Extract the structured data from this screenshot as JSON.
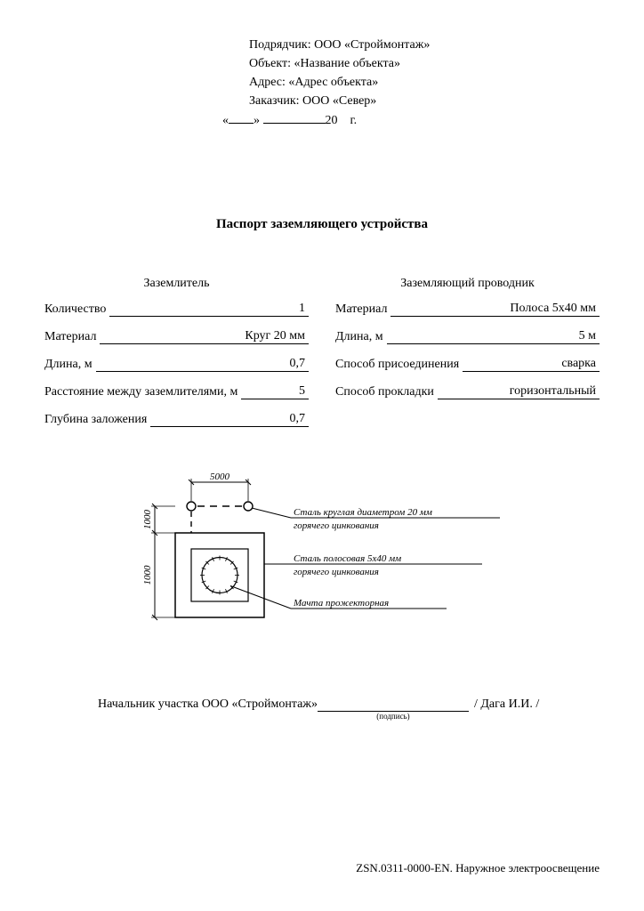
{
  "header": {
    "contractor_label": "Подрядчик:",
    "contractor_value": "ООО «Строймонтаж»",
    "object_label": "Объект:",
    "object_value": "«Название объекта»",
    "address_label": "Адрес:",
    "address_value": "«Адрес объекта»",
    "customer_label": "Заказчик:",
    "customer_value": "ООО «Север»",
    "date_prefix": "«",
    "date_mid": "»",
    "date_year_prefix": "20",
    "date_suffix": "г."
  },
  "title": "Паспорт заземляющего устройства",
  "left_col": {
    "heading": "Заземлитель",
    "rows": [
      {
        "label": "Количество",
        "value": "1"
      },
      {
        "label": "Материал",
        "value": "Круг 20 мм"
      },
      {
        "label": "Длина, м",
        "value": "0,7"
      },
      {
        "label": "Расстояние между заземлителями, м",
        "value": "5"
      },
      {
        "label": "Глубина заложения",
        "value": "0,7"
      }
    ]
  },
  "right_col": {
    "heading": "Заземляющий проводник",
    "rows": [
      {
        "label": "Материал",
        "value": "Полоса 5х40 мм"
      },
      {
        "label": "Длина, м",
        "value": "5 м"
      },
      {
        "label": "Способ присоединения",
        "value": "сварка"
      },
      {
        "label": "Способ прокладки",
        "value": "горизонтальный"
      }
    ]
  },
  "diagram": {
    "dim_top": "5000",
    "dim_left_top": "1000",
    "dim_left_bottom": "1000",
    "callout1_l1": "Сталь круглая диаметром 20 мм",
    "callout1_l2": "горячего цинкования",
    "callout2_l1": "Сталь полосовая 5х40 мм",
    "callout2_l2": "горячего цинкования",
    "callout3": "Мачта прожекторная",
    "stroke": "#000000",
    "font": "italic 11px 'Times New Roman', serif"
  },
  "signature": {
    "prefix": "Начальник участка ООО «Строймонтаж»",
    "sub": "(подпись)",
    "name": "/ Дага И.И. /"
  },
  "footer": "ZSN.0311-0000-EN. Наружное электроосвещение"
}
